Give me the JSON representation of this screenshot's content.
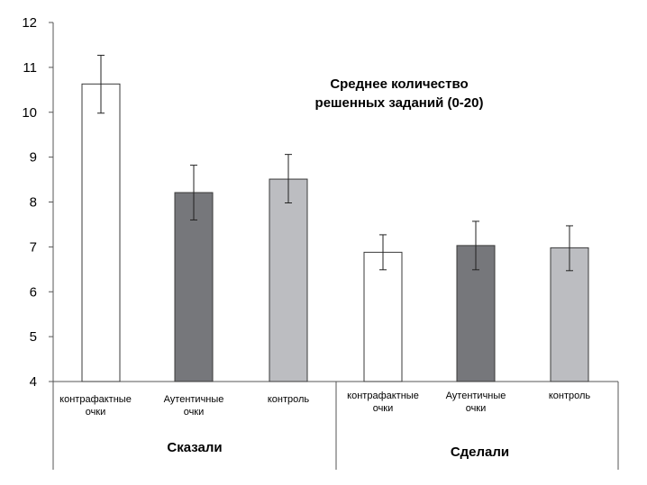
{
  "chart_data": {
    "type": "bar",
    "title_lines": [
      "Среднее количество",
      "решенных заданий (0-20)"
    ],
    "ylim": [
      4,
      12
    ],
    "yticks": [
      4,
      5,
      6,
      7,
      8,
      9,
      10,
      11,
      12
    ],
    "grid": false,
    "groups": [
      {
        "name": "Сказали",
        "bars": [
          {
            "label_lines": [
              "контрафактные",
              "очки"
            ],
            "value": 10.63,
            "err_low": 9.98,
            "err_high": 11.27,
            "color": "#ffffff"
          },
          {
            "label_lines": [
              "Аутентичные",
              "очки"
            ],
            "value": 8.21,
            "err_low": 7.6,
            "err_high": 8.82,
            "color": "#76777b"
          },
          {
            "label_lines": [
              "контроль"
            ],
            "value": 8.51,
            "err_low": 7.98,
            "err_high": 9.06,
            "color": "#bcbdc1"
          }
        ]
      },
      {
        "name": "Сделали",
        "bars": [
          {
            "label_lines": [
              "контрафактные",
              "очки"
            ],
            "value": 6.88,
            "err_low": 6.49,
            "err_high": 7.27,
            "color": "#ffffff"
          },
          {
            "label_lines": [
              "Аутентичные",
              "очки"
            ],
            "value": 7.03,
            "err_low": 6.49,
            "err_high": 7.57,
            "color": "#76777b"
          },
          {
            "label_lines": [
              "контроль"
            ],
            "value": 6.98,
            "err_low": 6.47,
            "err_high": 7.47,
            "color": "#bcbdc1"
          }
        ]
      }
    ]
  }
}
